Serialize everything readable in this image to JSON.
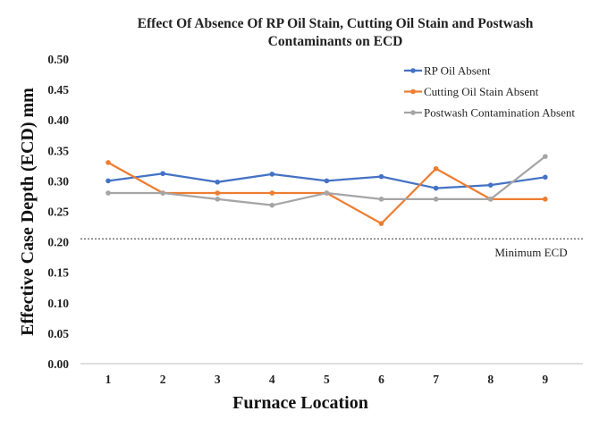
{
  "chart_data": {
    "type": "line",
    "title": "Effect Of Absence Of RP Oil Stain, Cutting Oil Stain and Postwash Contaminants on ECD",
    "title_lines": [
      "Effect Of Absence Of RP Oil Stain, Cutting Oil Stain and Postwash",
      "Contaminants on ECD"
    ],
    "xlabel": "Furnace Location",
    "ylabel": "Effective Case Depth  (ECD) mm",
    "x": [
      1,
      2,
      3,
      4,
      5,
      6,
      7,
      8,
      9
    ],
    "ylim": [
      0,
      0.5
    ],
    "ytick_labels": [
      "0.00",
      "0.05",
      "0.10",
      "0.15",
      "0.20",
      "0.25",
      "0.30",
      "0.35",
      "0.40",
      "0.45",
      "0.50"
    ],
    "grid": false,
    "legend_position": "top-right",
    "series": [
      {
        "name": "RP Oil Absent",
        "color": "#4472C4",
        "values": [
          0.3,
          0.312,
          0.298,
          0.311,
          0.3,
          0.307,
          0.288,
          0.293,
          0.306
        ]
      },
      {
        "name": "Cutting Oil Stain Absent",
        "color": "#ED7D31",
        "values": [
          0.33,
          0.28,
          0.28,
          0.28,
          0.28,
          0.23,
          0.32,
          0.27,
          0.27
        ]
      },
      {
        "name": "Postwash Contamination Absent",
        "color": "#A5A5A5",
        "values": [
          0.28,
          0.28,
          0.27,
          0.26,
          0.28,
          0.27,
          0.27,
          0.27,
          0.34
        ]
      }
    ],
    "reference_line": {
      "label": "Minimum ECD",
      "value": 0.205,
      "style": "dotted"
    }
  }
}
